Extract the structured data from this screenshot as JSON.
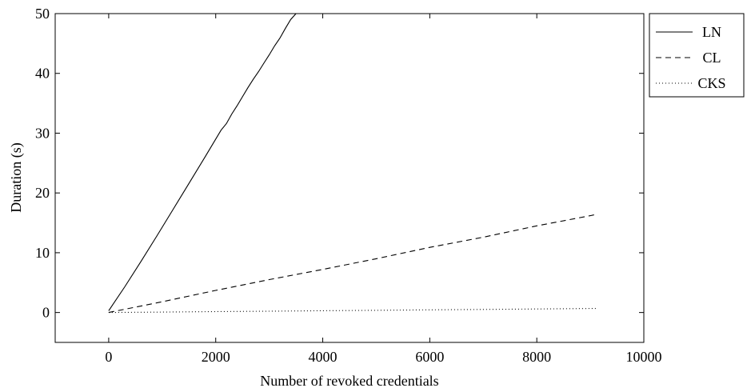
{
  "chart_data": {
    "type": "line",
    "title": "",
    "xlabel": "Number of revoked credentials",
    "ylabel": "Duration (s)",
    "xlim": [
      -1000,
      10000
    ],
    "ylim": [
      -5,
      50
    ],
    "xticks": [
      0,
      2000,
      4000,
      6000,
      8000,
      10000
    ],
    "yticks": [
      0,
      10,
      20,
      30,
      40,
      50
    ],
    "grid": false,
    "legend_position": "outside-top-right",
    "series": [
      {
        "name": "LN",
        "style": "solid",
        "color": "#000000",
        "x": [
          0,
          300,
          600,
          900,
          1200,
          1500,
          1800,
          2100,
          2200,
          2300,
          2400,
          2500,
          2600,
          2700,
          2800,
          2900,
          3000,
          3100,
          3200,
          3300,
          3400,
          3500
        ],
        "y": [
          0.3,
          4.3,
          8.5,
          12.8,
          17.2,
          21.6,
          26.0,
          30.5,
          31.6,
          33.2,
          34.6,
          36.1,
          37.6,
          39.0,
          40.3,
          41.7,
          43.1,
          44.6,
          45.9,
          47.5,
          49.0,
          50.0
        ]
      },
      {
        "name": "CL",
        "style": "dashed",
        "color": "#000000",
        "x": [
          0,
          1000,
          2000,
          3000,
          4000,
          5000,
          6000,
          7000,
          8000,
          9000,
          9100
        ],
        "y": [
          0.0,
          1.8,
          3.7,
          5.5,
          7.2,
          9.0,
          10.9,
          12.6,
          14.5,
          16.2,
          16.4
        ]
      },
      {
        "name": "CKS",
        "style": "dotted",
        "color": "#000000",
        "x": [
          0,
          1000,
          2000,
          3000,
          4000,
          5000,
          6000,
          7000,
          8000,
          9000,
          9100
        ],
        "y": [
          0.0,
          0.07,
          0.15,
          0.22,
          0.3,
          0.37,
          0.45,
          0.52,
          0.6,
          0.67,
          0.68
        ]
      }
    ]
  }
}
